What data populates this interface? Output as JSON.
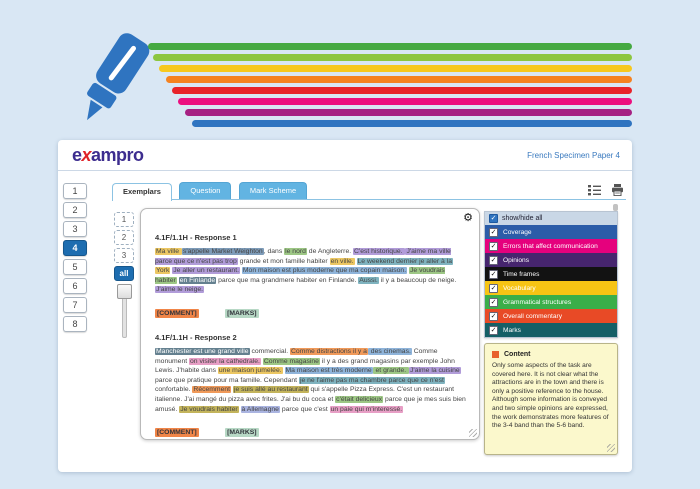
{
  "banner": {
    "stripe_colors": [
      "#45a941",
      "#8dc63f",
      "#f7c81d",
      "#f58220",
      "#e8232a",
      "#ec0f7f",
      "#a62182",
      "#2f74c0"
    ],
    "pen_color": "#2f74c0"
  },
  "header": {
    "logo_e": "e",
    "logo_x": "x",
    "logo_rest": "ampro",
    "paper_title": "French Specimen Paper 4"
  },
  "tabs": [
    {
      "label": "Exemplars",
      "active": true
    },
    {
      "label": "Question",
      "active": false
    },
    {
      "label": "Mark Scheme",
      "active": false
    }
  ],
  "sidebar": {
    "items": [
      "1",
      "2",
      "3",
      "4",
      "5",
      "6",
      "7",
      "8"
    ],
    "active": "4"
  },
  "mini_nav": {
    "items": [
      "1",
      "2",
      "3"
    ],
    "all_label": "all"
  },
  "highlight_colors": {
    "yellow": {
      "bg": "#ecc763"
    },
    "slate": {
      "bg": "#7e9cb9"
    },
    "green": {
      "bg": "#9dc785"
    },
    "purple": {
      "bg": "#b19cd9"
    },
    "blue": {
      "bg": "#8fb4da"
    },
    "teal": {
      "bg": "#7fb3bf"
    },
    "darkslate": {
      "bg": "#64808f",
      "fg": "#ffffff"
    },
    "pink": {
      "bg": "#e79ec5"
    },
    "orange": {
      "bg": "#f09a5a"
    },
    "olive": {
      "bg": "#c3b45c"
    },
    "lavender": {
      "bg": "#aab4e0"
    }
  },
  "responses": [
    {
      "title": "4.1F/1.1H - Response 1",
      "comment_label": "[COMMENT]",
      "marks_label": "[MARKS]",
      "segments": [
        {
          "t": "Ma ville ",
          "c": "yellow"
        },
        {
          "t": "s'appelle Market Weighton",
          "c": "slate"
        },
        {
          "t": ", dans ",
          "c": null
        },
        {
          "t": "le nord",
          "c": "green"
        },
        {
          "t": " de Angleterre. ",
          "c": null
        },
        {
          "t": "C'est historique. ",
          "c": "purple"
        },
        {
          "t": "J'aime ma ville parce que ce n'est pas trop",
          "c": "purple"
        },
        {
          "t": " grande et mon famille habiter ",
          "c": null
        },
        {
          "t": "en ville.",
          "c": "yellow"
        },
        {
          "t": " ",
          "c": null
        },
        {
          "t": "Le weekend dernier je aller à la ",
          "c": "teal"
        },
        {
          "t": "York",
          "c": "yellow"
        },
        {
          "t": " ",
          "c": null
        },
        {
          "t": "Je aller un restaurant.",
          "c": "purple"
        },
        {
          "t": " ",
          "c": null
        },
        {
          "t": "Mon maison est plus moderne que ma copain maison.",
          "c": "blue"
        },
        {
          "t": " ",
          "c": null
        },
        {
          "t": "Je voudrais habiter",
          "c": "green"
        },
        {
          "t": " ",
          "c": null
        },
        {
          "t": "en Finlande",
          "c": "darkslate"
        },
        {
          "t": " parce que ma grandmere habiter en Finlande. ",
          "c": null
        },
        {
          "t": "Aussi.",
          "c": "teal"
        },
        {
          "t": " il y a beaucoup de neige. ",
          "c": null
        },
        {
          "t": "J'aime le neige.",
          "c": "purple"
        }
      ]
    },
    {
      "title": "4.1F/1.1H - Response 2",
      "comment_label": "[COMMENT]",
      "marks_label": "[MARKS]",
      "segments": [
        {
          "t": "Manchester est une grand ville",
          "c": "darkslate"
        },
        {
          "t": " commercial. ",
          "c": null
        },
        {
          "t": "Comme distractions il y a",
          "c": "orange"
        },
        {
          "t": " des cinemas.",
          "c": "blue"
        },
        {
          "t": " Comme monument ",
          "c": null
        },
        {
          "t": "on visiter la cathedrale.",
          "c": "pink"
        },
        {
          "t": " ",
          "c": null
        },
        {
          "t": "Comme magasine",
          "c": "green"
        },
        {
          "t": " il y a des grand magasins par exemple John Lewis. J'habite dans ",
          "c": null
        },
        {
          "t": "une maison jumelée.",
          "c": "yellow"
        },
        {
          "t": " ",
          "c": null
        },
        {
          "t": "Ma maison est très moderne",
          "c": "blue"
        },
        {
          "t": " et grande. ",
          "c": "green"
        },
        {
          "t": "J'aime la cuisine",
          "c": "purple"
        },
        {
          "t": " parce que pratique pour ma famille. Cependant ",
          "c": null
        },
        {
          "t": "je ne l'aime pas ma chambre parce que ce n'est",
          "c": "teal"
        },
        {
          "t": " confortable. ",
          "c": null
        },
        {
          "t": "Récemment",
          "c": "orange"
        },
        {
          "t": " ",
          "c": null
        },
        {
          "t": "je suis allé au restaurant",
          "c": "olive"
        },
        {
          "t": " qui s'appelle Pizza Express. C'est un restaurant italienne. J'ai mangé du pizza avec frites. J'ai bu du coca et ",
          "c": null
        },
        {
          "t": "c'était delicieux",
          "c": "green"
        },
        {
          "t": " parce que je mes suis bien amusé. ",
          "c": null
        },
        {
          "t": "Je voudrais habiter",
          "c": "olive"
        },
        {
          "t": " ",
          "c": null
        },
        {
          "t": "à Allemagne",
          "c": "lavender"
        },
        {
          "t": " parce que c'est ",
          "c": null
        },
        {
          "t": "un paie qui m'interessé.",
          "c": "pink"
        }
      ]
    }
  ],
  "button_colors": {
    "comment_bg": "#f08548",
    "marks_bg": "#b7d8c5"
  },
  "legend": {
    "header": "show/hide all",
    "items": [
      {
        "label": "Coverage",
        "color": "#2b5ca8"
      },
      {
        "label": "Errors that affect communication",
        "color": "#e5017d"
      },
      {
        "label": "Opinions",
        "color": "#46256e"
      },
      {
        "label": "Time frames",
        "color": "#121212"
      },
      {
        "label": "Vocabulary",
        "color": "#f7c414"
      },
      {
        "label": "Grammatical structures",
        "color": "#3aae49"
      },
      {
        "label": "Overall commentary",
        "color": "#e84a26"
      },
      {
        "label": "Marks",
        "color": "#145f66"
      }
    ]
  },
  "note": {
    "title": "Content",
    "accent_color": "#e8622d",
    "body": "Only some aspects of the task are covered here. It is not clear what the attractions are in the town and there is only a positive reference to the house. Although some information is conveyed and two simple opinions are expressed, the work demonstrates more features of the 3-4 band than the 5-6 band."
  }
}
